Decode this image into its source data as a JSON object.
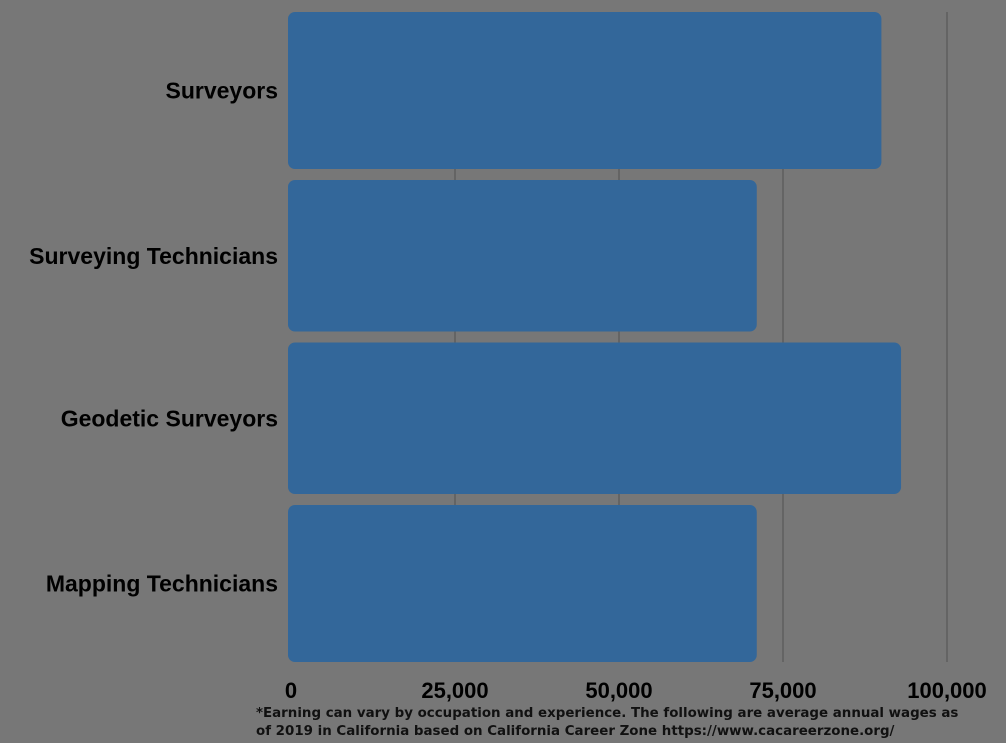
{
  "chart_data": {
    "type": "bar",
    "orientation": "horizontal",
    "categories": [
      "Surveyors",
      "Surveying Technicians",
      "Geodetic Surveyors",
      "Mapping Technicians"
    ],
    "values": [
      90000,
      71000,
      93000,
      71000
    ],
    "xlim": [
      0,
      100000
    ],
    "xticks": [
      0,
      25000,
      50000,
      75000,
      100000
    ],
    "xtick_labels": [
      "0",
      "25,000",
      "50,000",
      "75,000",
      "100,000"
    ],
    "grid": "vertical",
    "legend": "none",
    "colors": {
      "background": "#777777",
      "bar": "#33679a",
      "grid": "#5f5f5f",
      "text": "#000000"
    }
  },
  "footnote": {
    "line1": "*Earning can vary by occupation and experience. The following are average annual wages as",
    "line2": "of 2019 in California based on California Career Zone  https://www.cacareerzone.org/"
  }
}
